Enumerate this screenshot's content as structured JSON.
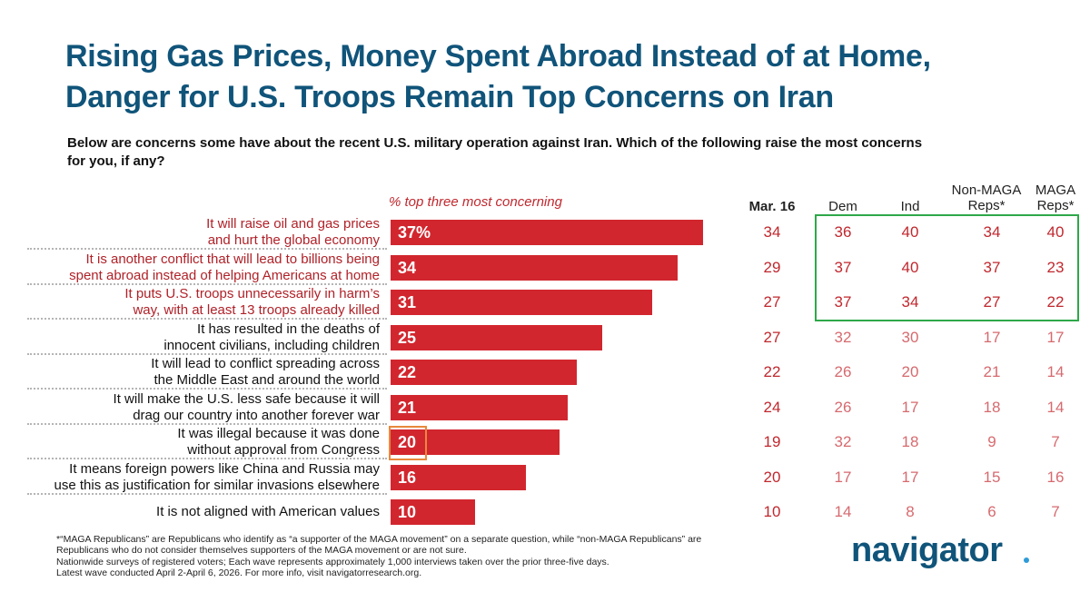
{
  "title_line1": "Rising Gas Prices, Money Spent Abroad Instead of at Home,",
  "title_line2": "Danger for U.S. Troops Remain Top Concerns on Iran",
  "question_line1": "Below are concerns some have about the recent U.S. military operation against Iran. Which of the following raise the most concerns",
  "question_line2": "for you, if any?",
  "chart_data": {
    "type": "bar",
    "orientation": "horizontal",
    "value_label": "% top three most concerning",
    "categories": [
      [
        "It will raise oil and gas prices",
        "and hurt the global economy"
      ],
      [
        "It is another conflict that will lead to billions being",
        "spent abroad instead of helping Americans at home"
      ],
      [
        "It puts U.S. troops unnecessarily in harm’s",
        "way, with at least 13 troops already killed"
      ],
      [
        "It has resulted in the deaths of",
        "innocent civilians, including children"
      ],
      [
        "It will lead to conflict spreading across",
        "the Middle East and around the world"
      ],
      [
        "It will make the U.S. less safe because it will",
        "drag our country into another forever war"
      ],
      [
        "It was illegal because it was done",
        "without approval from Congress"
      ],
      [
        "It means foreign powers like China and Russia may",
        "use this as justification for similar invasions elsewhere"
      ],
      [
        "It is not aligned with American values"
      ]
    ],
    "values": [
      37,
      34,
      31,
      25,
      22,
      21,
      20,
      16,
      10
    ],
    "value_labels": [
      "37%",
      "34",
      "31",
      "25",
      "22",
      "21",
      "20",
      "16",
      "10"
    ],
    "xlim": [
      0,
      100
    ],
    "highlighted_rows": [
      0,
      1,
      2
    ],
    "table": {
      "columns": [
        "Mar. 16",
        "Dem",
        "Ind",
        "Non-MAGA Reps*",
        "MAGA Reps*"
      ],
      "rows": [
        [
          "34",
          "36",
          "40",
          "34",
          "40"
        ],
        [
          "29",
          "37",
          "40",
          "37",
          "23"
        ],
        [
          "27",
          "37",
          "34",
          "27",
          "22"
        ],
        [
          "27",
          "32",
          "30",
          "17",
          "17"
        ],
        [
          "22",
          "26",
          "20",
          "21",
          "14"
        ],
        [
          "24",
          "26",
          "17",
          "18",
          "14"
        ],
        [
          "19",
          "32",
          "18",
          "9",
          "7"
        ],
        [
          "20",
          "17",
          "17",
          "15",
          "16"
        ],
        [
          "10",
          "14",
          "8",
          "6",
          "7"
        ]
      ]
    },
    "colors": {
      "bar": "#d2262e",
      "highlight_text": "#b02128",
      "highlight_box": "#2ea84a",
      "callout_box": "#e8893c",
      "title": "#10547a"
    }
  },
  "column_headers": {
    "mar16": "Mar. 16",
    "dem": "Dem",
    "ind": "Ind",
    "nonmaga_l1": "Non-MAGA",
    "nonmaga_l2": "Reps*",
    "maga_l1": "MAGA",
    "maga_l2": "Reps*"
  },
  "footnotes": [
    "*“MAGA Republicans” are Republicans who identify as “a supporter of the MAGA movement” on a separate question, while “non-MAGA Republicans” are",
    "Republicans who do not consider themselves supporters of the MAGA movement or are not sure.",
    "Nationwide surveys of registered voters; Each wave represents approximately 1,000 interviews taken over the prior three-five days.",
    "Latest wave conducted April 2-April 6, 2026. For more info, visit navigatorresearch.org."
  ],
  "logo_text": "navigator"
}
